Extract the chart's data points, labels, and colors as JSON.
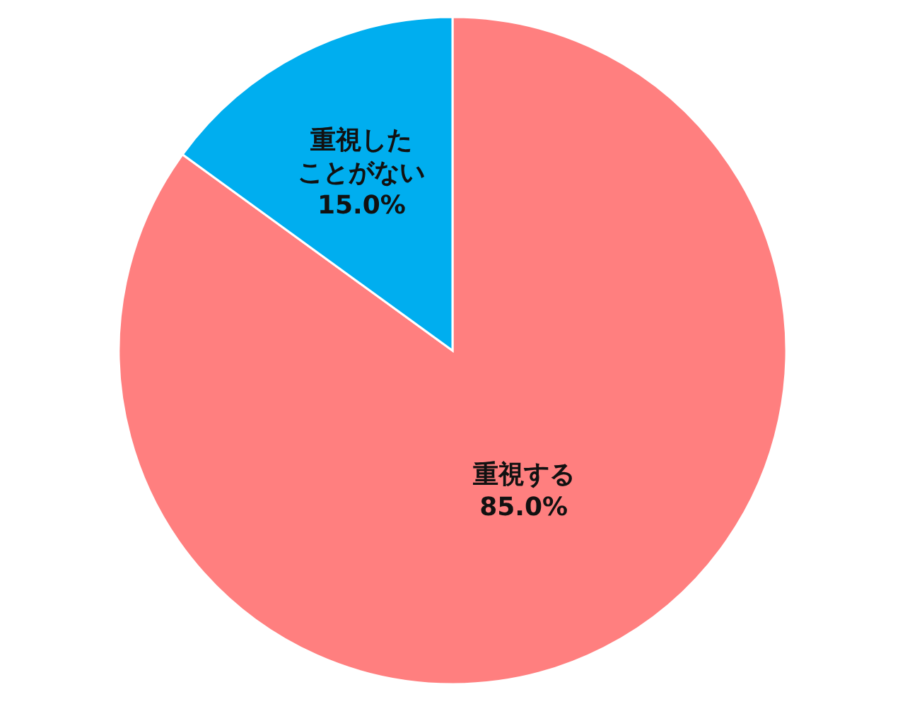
{
  "chart_data": {
    "type": "pie",
    "categories": [
      "重視する",
      "重視したことがない"
    ],
    "values": [
      85.0,
      15.0
    ],
    "colors": [
      "#ff7f7f",
      "#00aeef"
    ],
    "value_labels": [
      "85.0%",
      "15.0%"
    ]
  }
}
